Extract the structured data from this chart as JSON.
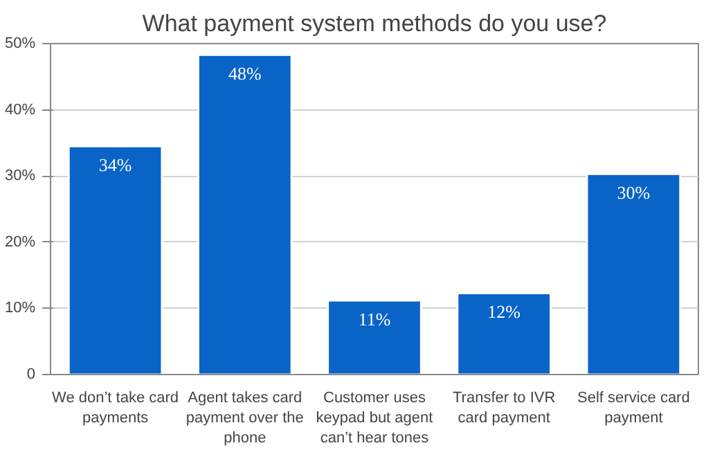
{
  "chart_data": {
    "type": "bar",
    "title": "What payment system methods do you use?",
    "categories": [
      "We don’t take card payments",
      "Agent takes card payment over the phone",
      "Customer uses keypad but agent can’t hear tones",
      "Transfer to IVR card payment",
      "Self service card payment"
    ],
    "values": [
      34.5,
      48.3,
      11.2,
      12.3,
      30.3
    ],
    "value_labels": [
      "34%",
      "48%",
      "11%",
      "12%",
      "30%"
    ],
    "color": "#0a64c8",
    "ylim": [
      0,
      50
    ],
    "yticks": [
      {
        "value": 0,
        "label": "0"
      },
      {
        "value": 10,
        "label": "10%"
      },
      {
        "value": 20,
        "label": "20%"
      },
      {
        "value": 30,
        "label": "30%"
      },
      {
        "value": 40,
        "label": "40%"
      },
      {
        "value": 50,
        "label": "50%"
      }
    ],
    "grid": "y"
  }
}
